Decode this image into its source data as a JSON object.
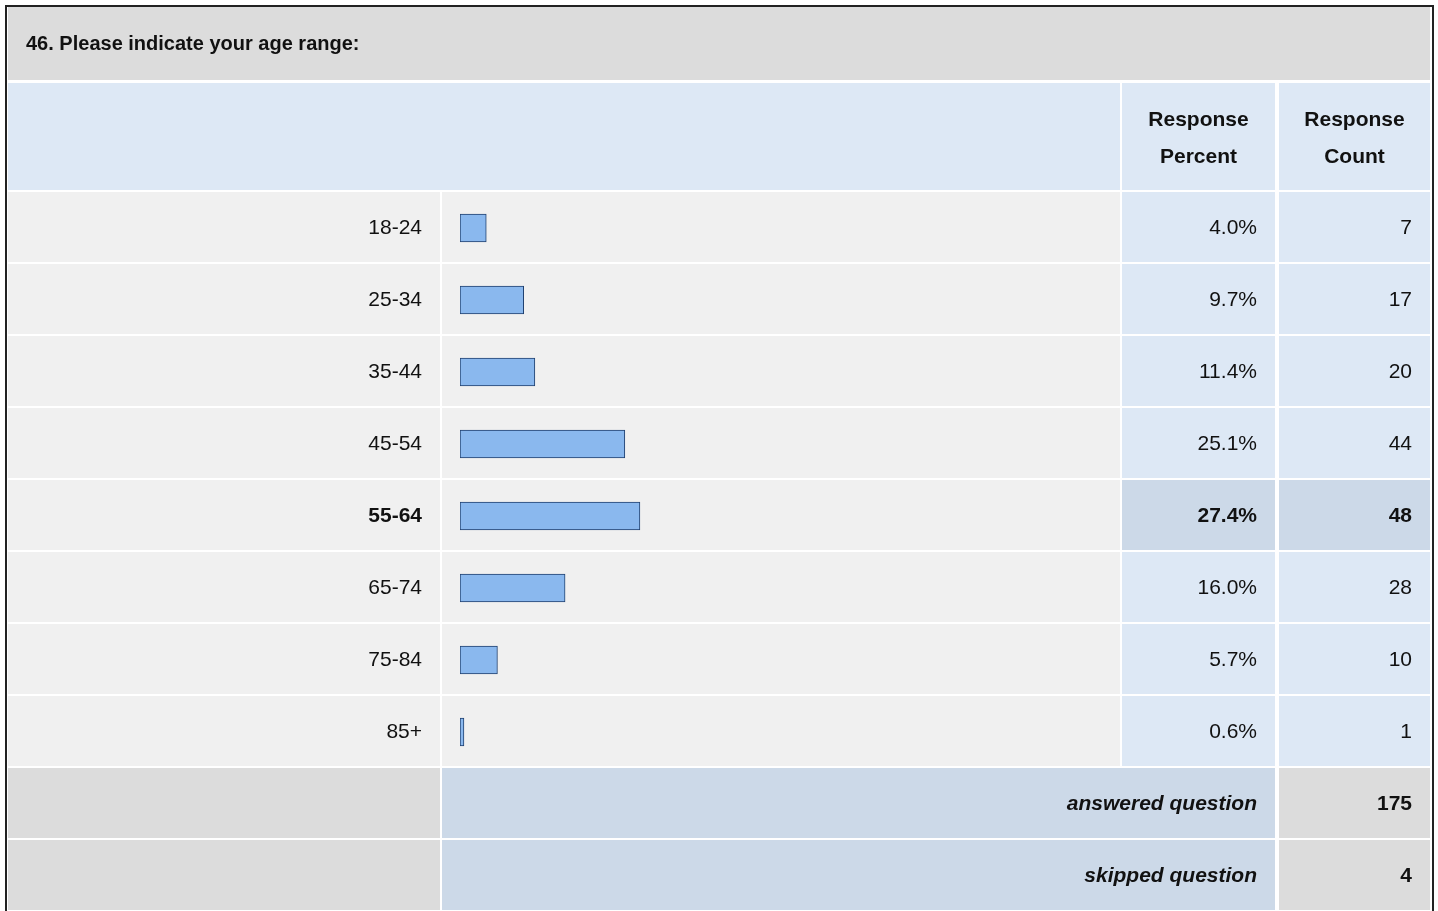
{
  "chart_data": {
    "type": "bar",
    "orientation": "horizontal",
    "title": "46. Please indicate your age range:",
    "categories": [
      "18-24",
      "25-34",
      "35-44",
      "45-54",
      "55-64",
      "65-74",
      "75-84",
      "85+"
    ],
    "values": [
      4.0,
      9.7,
      11.4,
      25.1,
      27.4,
      16.0,
      5.7,
      0.6
    ],
    "value_labels": [
      "4.0%",
      "9.7%",
      "11.4%",
      "25.1%",
      "27.4%",
      "16.0%",
      "5.7%",
      "0.6%"
    ],
    "color": "#8ab8ee",
    "legend": false,
    "annotations": [
      "Response Percent",
      "Response Count",
      "7",
      "17",
      "20",
      "44",
      "48",
      "28",
      "10",
      "1",
      "answered question",
      "175",
      "skipped question",
      "4"
    ]
  }
}
